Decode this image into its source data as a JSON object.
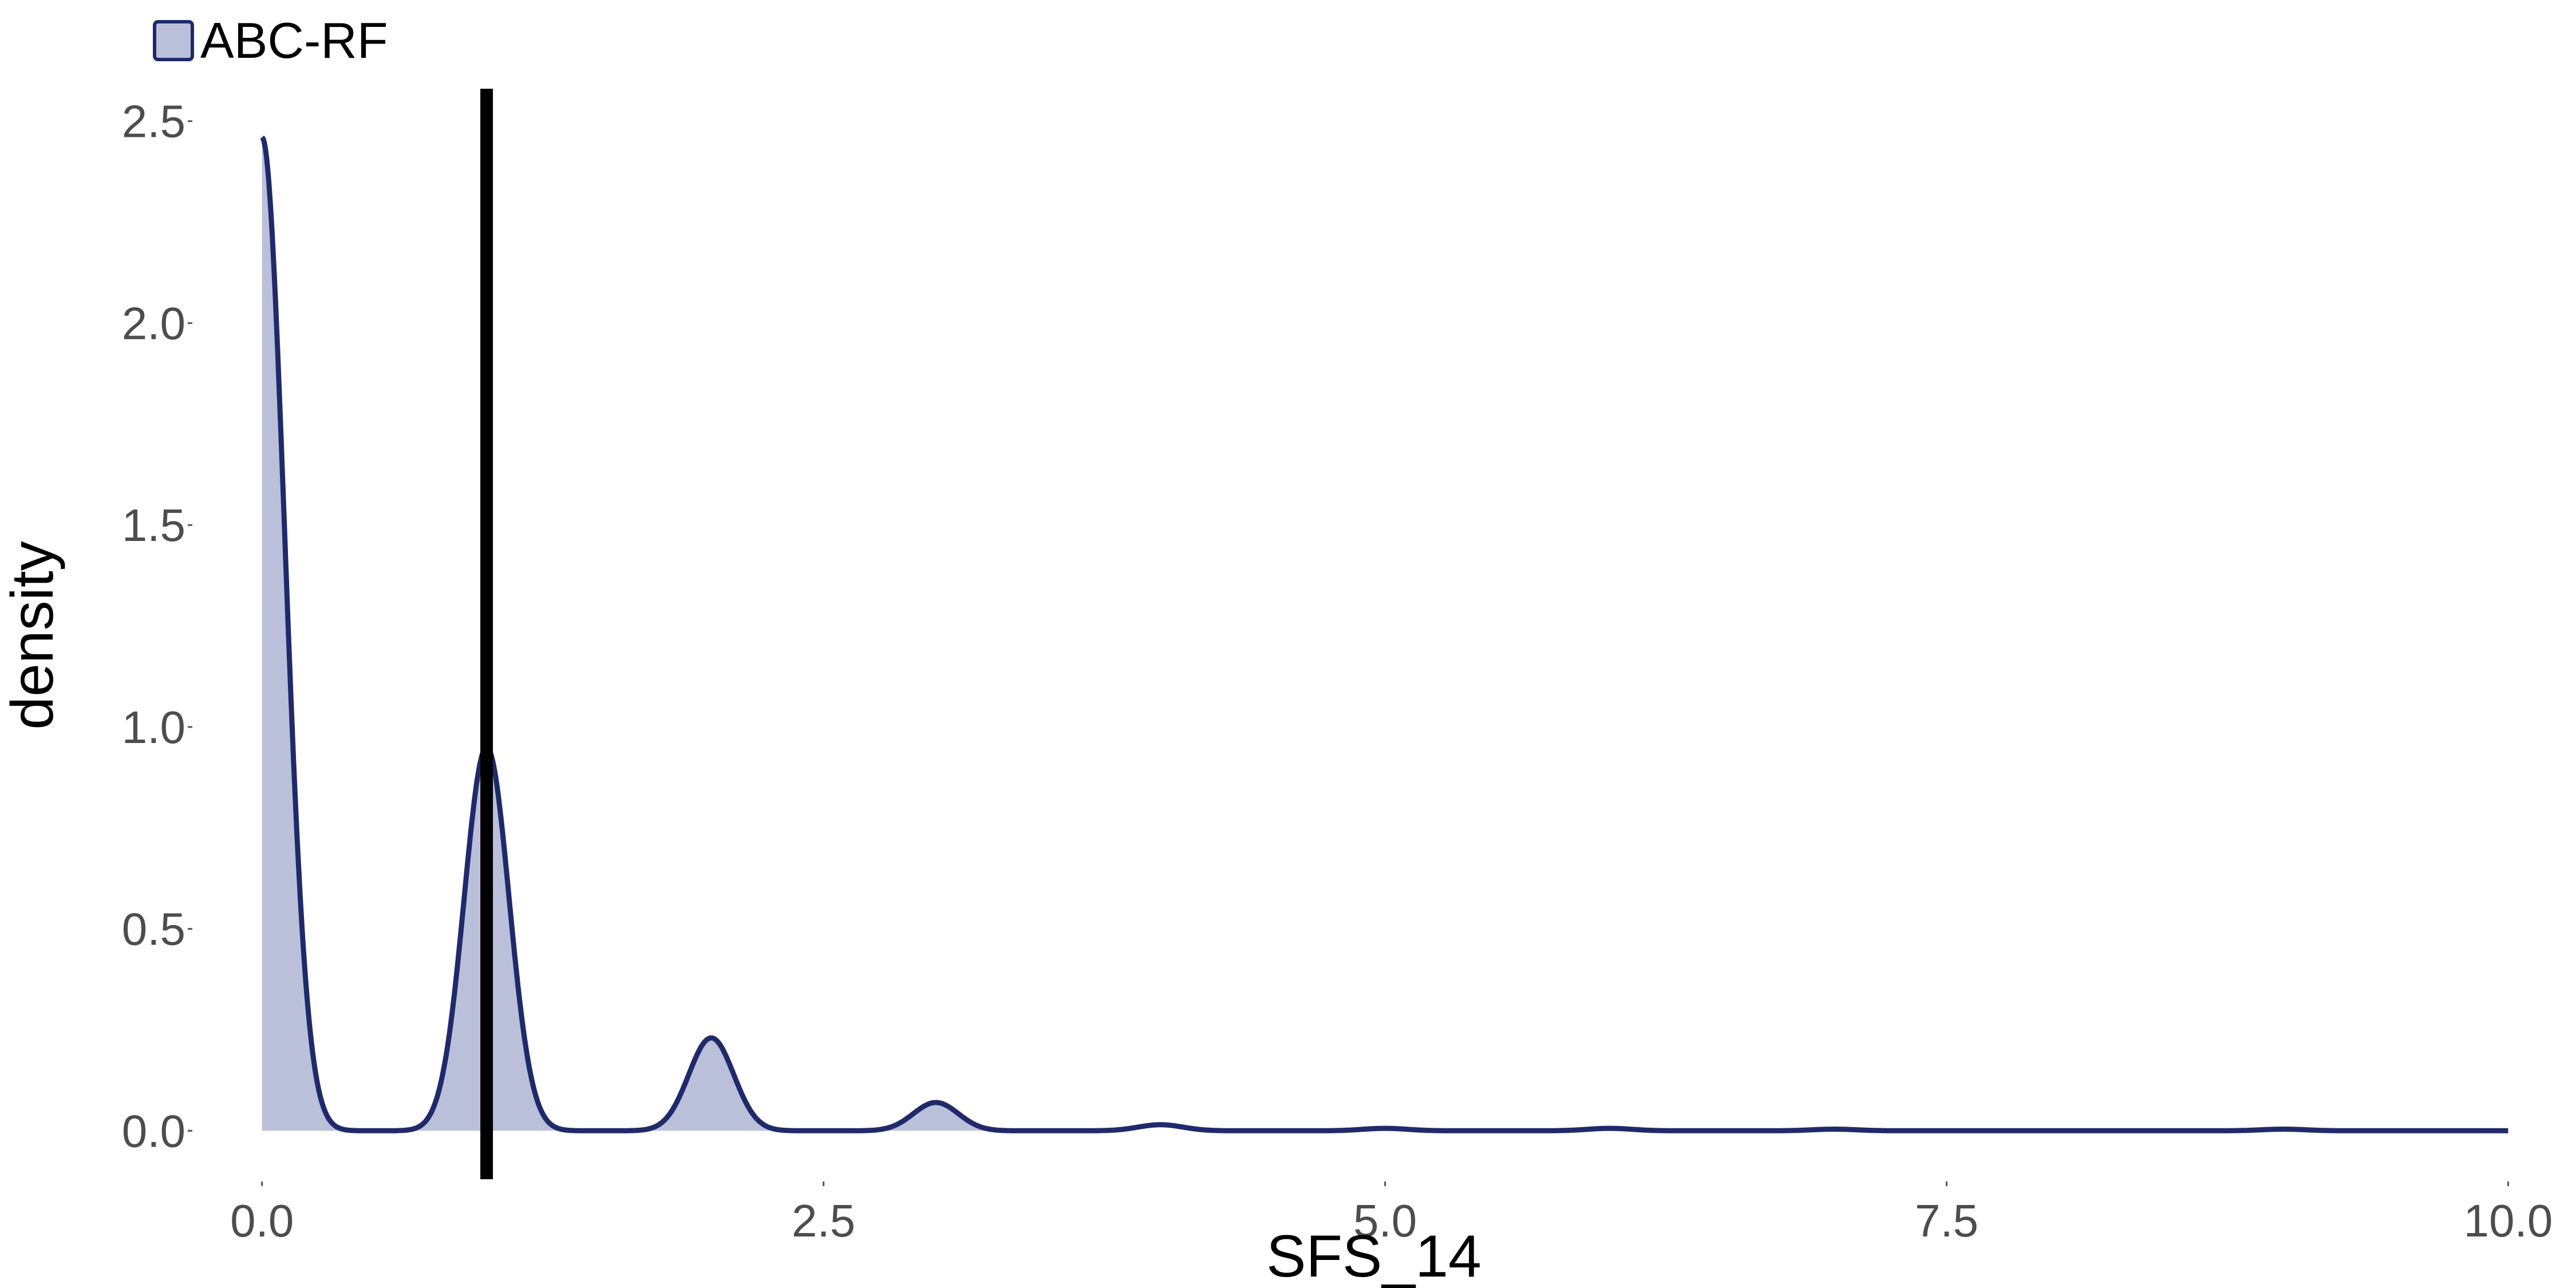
{
  "chart_data": {
    "type": "area",
    "title": "",
    "xlabel": "SFS_14",
    "ylabel": "density",
    "xlim": [
      -0.3,
      10.2
    ],
    "ylim": [
      -0.12,
      2.63
    ],
    "xticks": [
      0,
      2.5,
      5,
      7.5,
      10
    ],
    "xtick_labels": [
      "0.0",
      "2.5",
      "5.0",
      "7.5",
      "10.0"
    ],
    "yticks": [
      0,
      0.5,
      1,
      1.5,
      2,
      2.5
    ],
    "ytick_labels": [
      "0.0",
      "0.5",
      "1.0",
      "1.5",
      "2.0",
      "2.5"
    ],
    "grid": false,
    "legend": {
      "position": "top-left",
      "entries": [
        "ABC-RF"
      ]
    },
    "series": [
      {
        "name": "ABC-RF",
        "fill_color": "#bbc0da",
        "line_color": "#1f2a6b",
        "peaks": [
          {
            "x": 0,
            "height": 2.46,
            "sigma": 0.1,
            "one_sided": true
          },
          {
            "x": 1,
            "height": 0.95,
            "sigma": 0.1
          },
          {
            "x": 2,
            "height": 0.23,
            "sigma": 0.1
          },
          {
            "x": 3,
            "height": 0.07,
            "sigma": 0.1
          },
          {
            "x": 4,
            "height": 0.015,
            "sigma": 0.1
          },
          {
            "x": 5,
            "height": 0.006,
            "sigma": 0.1
          },
          {
            "x": 6,
            "height": 0.006,
            "sigma": 0.1
          },
          {
            "x": 7,
            "height": 0.004,
            "sigma": 0.1
          },
          {
            "x": 9,
            "height": 0.004,
            "sigma": 0.1
          }
        ],
        "fill_until_x": 3.5,
        "x_range": [
          0,
          10
        ]
      }
    ],
    "vline": {
      "x": 1.0,
      "color": "#000000"
    }
  }
}
